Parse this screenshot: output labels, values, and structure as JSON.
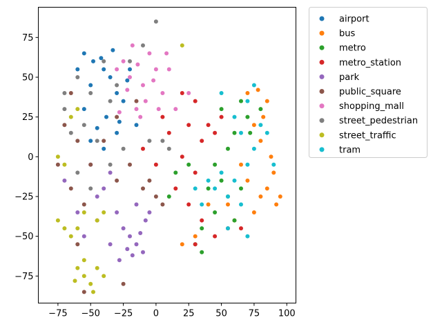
{
  "chart_data": {
    "type": "scatter",
    "title": "",
    "xlabel": "",
    "ylabel": "",
    "xlim": [
      -90,
      107
    ],
    "ylim": [
      -92,
      94
    ],
    "xticks": [
      -75,
      -50,
      -25,
      0,
      25,
      50,
      75,
      100
    ],
    "yticks": [
      -75,
      -50,
      -25,
      0,
      25,
      50,
      75
    ],
    "xtick_labels": [
      "−75",
      "−50",
      "−25",
      "0",
      "25",
      "50",
      "75",
      "100"
    ],
    "ytick_labels": [
      "−75",
      "−50",
      "−25",
      "0",
      "25",
      "50",
      "75"
    ],
    "grid": false,
    "legend_position": "outside-right",
    "series": [
      {
        "name": "airport",
        "color": "#1f77b4",
        "points": [
          [
            -55,
            65
          ],
          [
            -48,
            60
          ],
          [
            -40,
            55
          ],
          [
            -35,
            50
          ],
          [
            -50,
            45
          ],
          [
            -30,
            40
          ],
          [
            -20,
            55
          ],
          [
            -25,
            35
          ],
          [
            -38,
            25
          ],
          [
            -45,
            18
          ],
          [
            -30,
            15
          ],
          [
            -15,
            20
          ],
          [
            -55,
            30
          ],
          [
            -60,
            55
          ],
          [
            -42,
            62
          ],
          [
            -33,
            67
          ],
          [
            -22,
            48
          ],
          [
            -28,
            22
          ],
          [
            -50,
            10
          ],
          [
            -40,
            5
          ]
        ]
      },
      {
        "name": "bus",
        "color": "#ff7f0e",
        "points": [
          [
            70,
            40
          ],
          [
            78,
            42
          ],
          [
            85,
            35
          ],
          [
            75,
            20
          ],
          [
            80,
            10
          ],
          [
            88,
            0
          ],
          [
            90,
            -10
          ],
          [
            85,
            -20
          ],
          [
            92,
            -30
          ],
          [
            80,
            -25
          ],
          [
            70,
            -15
          ],
          [
            65,
            -5
          ],
          [
            60,
            -40
          ],
          [
            55,
            -30
          ],
          [
            75,
            -35
          ],
          [
            40,
            -30
          ],
          [
            20,
            -55
          ],
          [
            30,
            -50
          ],
          [
            95,
            -25
          ],
          [
            82,
            25
          ]
        ]
      },
      {
        "name": "metro",
        "color": "#2ca02c",
        "points": [
          [
            65,
            35
          ],
          [
            70,
            25
          ],
          [
            60,
            15
          ],
          [
            55,
            5
          ],
          [
            45,
            -5
          ],
          [
            50,
            -15
          ],
          [
            40,
            -20
          ],
          [
            55,
            -25
          ],
          [
            45,
            -35
          ],
          [
            35,
            -45
          ],
          [
            30,
            -55
          ],
          [
            60,
            -40
          ],
          [
            25,
            -5
          ],
          [
            15,
            -10
          ],
          [
            72,
            15
          ],
          [
            80,
            30
          ],
          [
            65,
            -20
          ],
          [
            35,
            -60
          ],
          [
            10,
            -25
          ],
          [
            50,
            30
          ]
        ]
      },
      {
        "name": "metro_station",
        "color": "#d62728",
        "points": [
          [
            20,
            40
          ],
          [
            30,
            35
          ],
          [
            25,
            20
          ],
          [
            35,
            10
          ],
          [
            20,
            0
          ],
          [
            30,
            -10
          ],
          [
            15,
            -20
          ],
          [
            25,
            -30
          ],
          [
            35,
            -40
          ],
          [
            45,
            -50
          ],
          [
            55,
            -45
          ],
          [
            40,
            20
          ],
          [
            50,
            25
          ],
          [
            10,
            15
          ],
          [
            5,
            25
          ],
          [
            -10,
            5
          ],
          [
            0,
            -5
          ],
          [
            30,
            -55
          ],
          [
            65,
            -45
          ],
          [
            45,
            15
          ]
        ]
      },
      {
        "name": "park",
        "color": "#9467bd",
        "points": [
          [
            -20,
            -50
          ],
          [
            -15,
            -55
          ],
          [
            -10,
            -60
          ],
          [
            -25,
            -45
          ],
          [
            -30,
            -35
          ],
          [
            -5,
            -35
          ],
          [
            -18,
            -62
          ],
          [
            -12,
            -48
          ],
          [
            -35,
            -55
          ],
          [
            -40,
            -20
          ],
          [
            -35,
            -10
          ],
          [
            -60,
            -35
          ],
          [
            -70,
            -15
          ],
          [
            -50,
            -5
          ],
          [
            -45,
            -25
          ],
          [
            -8,
            -40
          ],
          [
            -22,
            -58
          ],
          [
            -15,
            -30
          ],
          [
            -28,
            -65
          ],
          [
            -55,
            -50
          ]
        ]
      },
      {
        "name": "public_square",
        "color": "#8c564b",
        "points": [
          [
            -70,
            20
          ],
          [
            -60,
            10
          ],
          [
            -50,
            -5
          ],
          [
            -65,
            -20
          ],
          [
            -55,
            -30
          ],
          [
            -45,
            -40
          ],
          [
            -30,
            -15
          ],
          [
            -20,
            -5
          ],
          [
            -10,
            -20
          ],
          [
            0,
            -25
          ],
          [
            5,
            -30
          ],
          [
            -5,
            -15
          ],
          [
            -40,
            10
          ],
          [
            -30,
            25
          ],
          [
            -15,
            35
          ],
          [
            -75,
            -5
          ],
          [
            -65,
            40
          ],
          [
            -60,
            -55
          ],
          [
            -55,
            -85
          ],
          [
            -25,
            -80
          ]
        ]
      },
      {
        "name": "shopping_mall",
        "color": "#e377c2",
        "points": [
          [
            -20,
            50
          ],
          [
            -10,
            45
          ],
          [
            0,
            55
          ],
          [
            5,
            40
          ],
          [
            -15,
            30
          ],
          [
            -25,
            60
          ],
          [
            -5,
            65
          ],
          [
            -12,
            25
          ],
          [
            -30,
            55
          ],
          [
            10,
            55
          ],
          [
            -8,
            35
          ],
          [
            2,
            30
          ],
          [
            -18,
            70
          ],
          [
            -22,
            42
          ],
          [
            15,
            30
          ],
          [
            25,
            40
          ],
          [
            8,
            65
          ],
          [
            -28,
            28
          ],
          [
            -2,
            48
          ],
          [
            -14,
            58
          ]
        ]
      },
      {
        "name": "street_pedestrian",
        "color": "#7f7f7f",
        "points": [
          [
            -60,
            50
          ],
          [
            -50,
            40
          ],
          [
            -40,
            60
          ],
          [
            -30,
            45
          ],
          [
            -70,
            30
          ],
          [
            -65,
            15
          ],
          [
            -55,
            20
          ],
          [
            -35,
            35
          ],
          [
            -20,
            60
          ],
          [
            -10,
            70
          ],
          [
            0,
            85
          ],
          [
            -45,
            10
          ],
          [
            -25,
            5
          ],
          [
            -60,
            -10
          ],
          [
            -50,
            -20
          ],
          [
            -35,
            -5
          ],
          [
            -5,
            10
          ],
          [
            5,
            10
          ],
          [
            10,
            5
          ],
          [
            -70,
            40
          ]
        ]
      },
      {
        "name": "street_traffic",
        "color": "#bcbd22",
        "points": [
          [
            -60,
            -70
          ],
          [
            -55,
            -75
          ],
          [
            -50,
            -80
          ],
          [
            -45,
            -70
          ],
          [
            -40,
            -75
          ],
          [
            -55,
            -65
          ],
          [
            -48,
            -85
          ],
          [
            -62,
            -78
          ],
          [
            -70,
            -45
          ],
          [
            -65,
            -50
          ],
          [
            -75,
            -40
          ],
          [
            -60,
            -45
          ],
          [
            -45,
            -40
          ],
          [
            -40,
            -35
          ],
          [
            -55,
            -35
          ],
          [
            -75,
            0
          ],
          [
            -70,
            -5
          ],
          [
            -65,
            25
          ],
          [
            -60,
            30
          ],
          [
            20,
            70
          ]
        ]
      },
      {
        "name": "tram",
        "color": "#17becf",
        "points": [
          [
            75,
            45
          ],
          [
            70,
            35
          ],
          [
            80,
            20
          ],
          [
            65,
            15
          ],
          [
            75,
            5
          ],
          [
            70,
            -5
          ],
          [
            60,
            -15
          ],
          [
            55,
            -25
          ],
          [
            65,
            -30
          ],
          [
            50,
            -10
          ],
          [
            45,
            -20
          ],
          [
            40,
            -15
          ],
          [
            30,
            -20
          ],
          [
            35,
            -30
          ],
          [
            70,
            -50
          ],
          [
            55,
            -45
          ],
          [
            60,
            25
          ],
          [
            85,
            15
          ],
          [
            90,
            -5
          ],
          [
            50,
            40
          ]
        ]
      }
    ]
  }
}
